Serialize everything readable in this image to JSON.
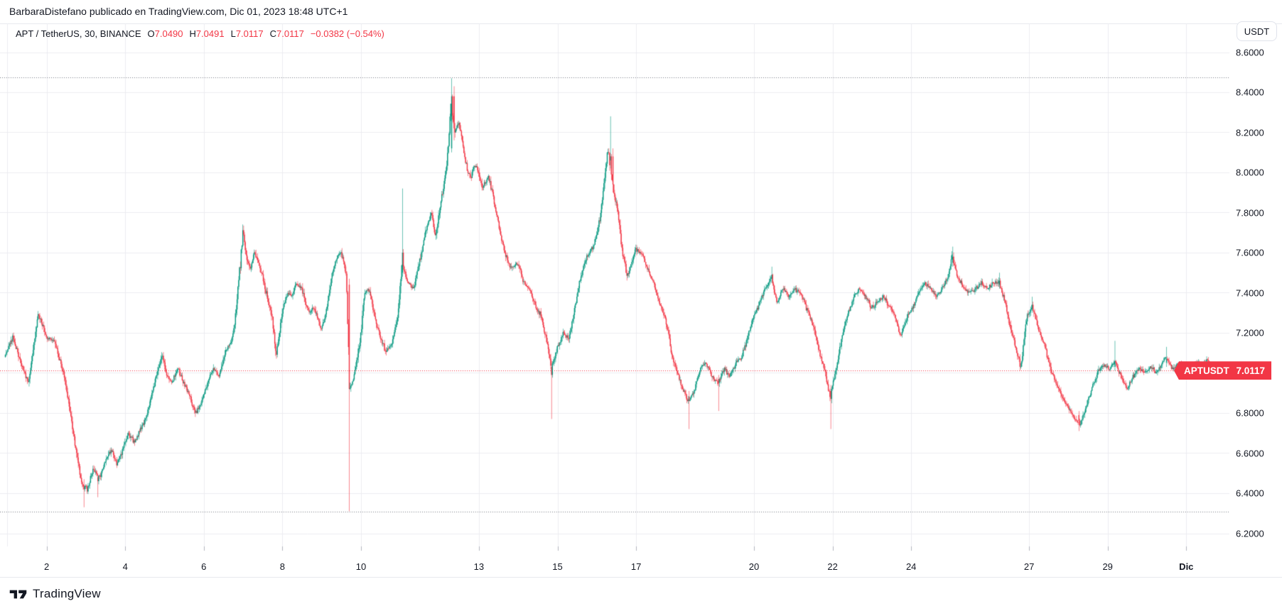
{
  "attribution": "BarbaraDistefano publicado en TradingView.com, Dic 01, 2023 18:48 UTC+1",
  "usdt_button": "USDT",
  "legend": {
    "title": "APT / TetherUS, 30, BINANCE",
    "o_label": "O",
    "o": "7.0490",
    "h_label": "H",
    "h": "7.0491",
    "l_label": "L",
    "l": "7.0117",
    "c_label": "C",
    "c": "7.0117",
    "change": "−0.0382 (−0.54%)"
  },
  "badge": {
    "symbol": "APTUSDT",
    "price": "7.0117"
  },
  "footer": {
    "logo_text": "TradingView"
  },
  "chart_data": {
    "type": "candlestick",
    "title": "APT / TetherUS, 30, BINANCE",
    "symbol": "APTUSDT",
    "pair": "APT / TetherUS",
    "interval_minutes": "30",
    "exchange": "BINANCE",
    "quote_currency": "USDT",
    "ohlc_last": {
      "open": 7.049,
      "high": 7.0491,
      "low": 7.0117,
      "close": 7.0117,
      "change_abs": -0.0382,
      "change_pct": -0.54
    },
    "levels": {
      "high_line": 8.474,
      "low_line": 6.308,
      "current_price": 7.0117
    },
    "price_axis": {
      "ticks": [
        {
          "label": "8.6000",
          "price": 8.6
        },
        {
          "label": "8.4000",
          "price": 8.4
        },
        {
          "label": "8.2000",
          "price": 8.2
        },
        {
          "label": "8.0000",
          "price": 8.0
        },
        {
          "label": "7.8000",
          "price": 7.8
        },
        {
          "label": "7.6000",
          "price": 7.6
        },
        {
          "label": "7.4000",
          "price": 7.4
        },
        {
          "label": "7.2000",
          "price": 7.2
        },
        {
          "label": "6.8000",
          "price": 6.8
        },
        {
          "label": "6.6000",
          "price": 6.6
        },
        {
          "label": "6.4000",
          "price": 6.4
        },
        {
          "label": "6.2000",
          "price": 6.2
        }
      ],
      "grid_min": 6.2,
      "grid_max": 8.6,
      "grid_step": 0.2
    },
    "time_axis": {
      "ticks": [
        {
          "label": "2",
          "day": 2
        },
        {
          "label": "4",
          "day": 4
        },
        {
          "label": "6",
          "day": 6
        },
        {
          "label": "8",
          "day": 8
        },
        {
          "label": "10",
          "day": 10
        },
        {
          "label": "13",
          "day": 13
        },
        {
          "label": "15",
          "day": 15
        },
        {
          "label": "17",
          "day": 17
        },
        {
          "label": "20",
          "day": 20
        },
        {
          "label": "22",
          "day": 22
        },
        {
          "label": "24",
          "day": 24
        },
        {
          "label": "27",
          "day": 27
        },
        {
          "label": "29",
          "day": 29
        },
        {
          "label": "Dic",
          "day": 31,
          "bold": true
        }
      ],
      "first_day_gridline": 1,
      "month": "Nov 2023 → Dic 2023"
    },
    "range": {
      "day_start": 0.94,
      "day_end": 31.78,
      "candles_per_day": 48
    },
    "colors": {
      "up": "#089981",
      "down": "#f23645",
      "grid": "#ececf1",
      "tick": "#b2b5be",
      "dotted": "#787b86",
      "current": "#f23645"
    },
    "anchors": [
      [
        0.9,
        7.06
      ],
      [
        1.15,
        7.18
      ],
      [
        1.35,
        7.05
      ],
      [
        1.55,
        6.95
      ],
      [
        1.8,
        7.3
      ],
      [
        2.0,
        7.18
      ],
      [
        2.2,
        7.16
      ],
      [
        2.45,
        7.0
      ],
      [
        2.6,
        6.82
      ],
      [
        2.75,
        6.62
      ],
      [
        2.9,
        6.45
      ],
      [
        3.05,
        6.42
      ],
      [
        3.2,
        6.52
      ],
      [
        3.35,
        6.48
      ],
      [
        3.5,
        6.55
      ],
      [
        3.65,
        6.62
      ],
      [
        3.8,
        6.55
      ],
      [
        3.95,
        6.62
      ],
      [
        4.1,
        6.7
      ],
      [
        4.25,
        6.65
      ],
      [
        4.4,
        6.72
      ],
      [
        4.55,
        6.78
      ],
      [
        4.7,
        6.9
      ],
      [
        4.85,
        7.02
      ],
      [
        4.95,
        7.1
      ],
      [
        5.05,
        7.0
      ],
      [
        5.2,
        6.95
      ],
      [
        5.35,
        7.02
      ],
      [
        5.5,
        6.95
      ],
      [
        5.65,
        6.88
      ],
      [
        5.8,
        6.8
      ],
      [
        5.95,
        6.85
      ],
      [
        6.1,
        6.95
      ],
      [
        6.25,
        7.02
      ],
      [
        6.4,
        6.98
      ],
      [
        6.55,
        7.1
      ],
      [
        6.7,
        7.15
      ],
      [
        6.8,
        7.25
      ],
      [
        6.9,
        7.45
      ],
      [
        7.0,
        7.7
      ],
      [
        7.1,
        7.58
      ],
      [
        7.2,
        7.52
      ],
      [
        7.3,
        7.6
      ],
      [
        7.4,
        7.55
      ],
      [
        7.5,
        7.48
      ],
      [
        7.6,
        7.4
      ],
      [
        7.7,
        7.32
      ],
      [
        7.75,
        7.28
      ],
      [
        7.85,
        7.08
      ],
      [
        7.95,
        7.22
      ],
      [
        8.05,
        7.35
      ],
      [
        8.15,
        7.4
      ],
      [
        8.25,
        7.38
      ],
      [
        8.35,
        7.45
      ],
      [
        8.5,
        7.42
      ],
      [
        8.6,
        7.35
      ],
      [
        8.7,
        7.3
      ],
      [
        8.8,
        7.33
      ],
      [
        8.9,
        7.28
      ],
      [
        9.0,
        7.22
      ],
      [
        9.1,
        7.28
      ],
      [
        9.2,
        7.4
      ],
      [
        9.3,
        7.52
      ],
      [
        9.4,
        7.58
      ],
      [
        9.5,
        7.6
      ],
      [
        9.57,
        7.55
      ],
      [
        9.64,
        7.48
      ],
      [
        9.72,
        6.92
      ],
      [
        9.8,
        6.95
      ],
      [
        9.9,
        7.05
      ],
      [
        10.0,
        7.18
      ],
      [
        10.1,
        7.4
      ],
      [
        10.2,
        7.42
      ],
      [
        10.35,
        7.28
      ],
      [
        10.5,
        7.18
      ],
      [
        10.65,
        7.1
      ],
      [
        10.8,
        7.15
      ],
      [
        10.95,
        7.28
      ],
      [
        11.05,
        7.55
      ],
      [
        11.2,
        7.45
      ],
      [
        11.35,
        7.42
      ],
      [
        11.5,
        7.55
      ],
      [
        11.65,
        7.7
      ],
      [
        11.8,
        7.8
      ],
      [
        11.9,
        7.68
      ],
      [
        12.0,
        7.8
      ],
      [
        12.1,
        7.92
      ],
      [
        12.2,
        8.05
      ],
      [
        12.3,
        8.35
      ],
      [
        12.4,
        8.2
      ],
      [
        12.5,
        8.25
      ],
      [
        12.6,
        8.15
      ],
      [
        12.7,
        8.02
      ],
      [
        12.8,
        7.97
      ],
      [
        12.9,
        8.04
      ],
      [
        13.0,
        8.0
      ],
      [
        13.1,
        7.92
      ],
      [
        13.25,
        7.98
      ],
      [
        13.4,
        7.85
      ],
      [
        13.55,
        7.7
      ],
      [
        13.7,
        7.58
      ],
      [
        13.85,
        7.52
      ],
      [
        14.0,
        7.55
      ],
      [
        14.15,
        7.45
      ],
      [
        14.3,
        7.42
      ],
      [
        14.45,
        7.33
      ],
      [
        14.6,
        7.28
      ],
      [
        14.75,
        7.15
      ],
      [
        14.85,
        7.02
      ],
      [
        15.0,
        7.12
      ],
      [
        15.15,
        7.2
      ],
      [
        15.3,
        7.17
      ],
      [
        15.45,
        7.32
      ],
      [
        15.6,
        7.48
      ],
      [
        15.75,
        7.58
      ],
      [
        15.9,
        7.62
      ],
      [
        16.0,
        7.68
      ],
      [
        16.1,
        7.78
      ],
      [
        16.2,
        7.95
      ],
      [
        16.3,
        8.12
      ],
      [
        16.42,
        7.92
      ],
      [
        16.55,
        7.8
      ],
      [
        16.65,
        7.62
      ],
      [
        16.78,
        7.48
      ],
      [
        16.9,
        7.55
      ],
      [
        17.0,
        7.62
      ],
      [
        17.15,
        7.6
      ],
      [
        17.3,
        7.52
      ],
      [
        17.45,
        7.45
      ],
      [
        17.6,
        7.35
      ],
      [
        17.75,
        7.28
      ],
      [
        17.9,
        7.12
      ],
      [
        18.05,
        7.0
      ],
      [
        18.2,
        6.92
      ],
      [
        18.35,
        6.85
      ],
      [
        18.5,
        6.92
      ],
      [
        18.65,
        7.02
      ],
      [
        18.8,
        7.05
      ],
      [
        18.95,
        6.98
      ],
      [
        19.1,
        6.95
      ],
      [
        19.25,
        7.02
      ],
      [
        19.4,
        6.98
      ],
      [
        19.55,
        7.05
      ],
      [
        19.7,
        7.08
      ],
      [
        19.85,
        7.18
      ],
      [
        20.0,
        7.28
      ],
      [
        20.15,
        7.35
      ],
      [
        20.3,
        7.42
      ],
      [
        20.45,
        7.48
      ],
      [
        20.6,
        7.35
      ],
      [
        20.75,
        7.42
      ],
      [
        20.9,
        7.38
      ],
      [
        21.05,
        7.42
      ],
      [
        21.2,
        7.4
      ],
      [
        21.35,
        7.32
      ],
      [
        21.5,
        7.25
      ],
      [
        21.65,
        7.12
      ],
      [
        21.8,
        7.02
      ],
      [
        21.95,
        6.88
      ],
      [
        22.1,
        7.02
      ],
      [
        22.25,
        7.18
      ],
      [
        22.4,
        7.3
      ],
      [
        22.55,
        7.38
      ],
      [
        22.7,
        7.42
      ],
      [
        22.85,
        7.38
      ],
      [
        23.0,
        7.32
      ],
      [
        23.15,
        7.35
      ],
      [
        23.3,
        7.38
      ],
      [
        23.45,
        7.33
      ],
      [
        23.6,
        7.28
      ],
      [
        23.75,
        7.18
      ],
      [
        23.9,
        7.28
      ],
      [
        24.05,
        7.33
      ],
      [
        24.2,
        7.4
      ],
      [
        24.35,
        7.45
      ],
      [
        24.5,
        7.42
      ],
      [
        24.65,
        7.38
      ],
      [
        24.8,
        7.42
      ],
      [
        24.95,
        7.48
      ],
      [
        25.05,
        7.58
      ],
      [
        25.2,
        7.48
      ],
      [
        25.35,
        7.42
      ],
      [
        25.5,
        7.4
      ],
      [
        25.65,
        7.42
      ],
      [
        25.8,
        7.45
      ],
      [
        25.95,
        7.42
      ],
      [
        26.1,
        7.45
      ],
      [
        26.25,
        7.45
      ],
      [
        26.4,
        7.35
      ],
      [
        26.55,
        7.22
      ],
      [
        26.7,
        7.1
      ],
      [
        26.8,
        7.03
      ],
      [
        26.95,
        7.28
      ],
      [
        27.1,
        7.33
      ],
      [
        27.25,
        7.22
      ],
      [
        27.4,
        7.15
      ],
      [
        27.55,
        7.02
      ],
      [
        27.7,
        6.95
      ],
      [
        27.85,
        6.88
      ],
      [
        28.0,
        6.83
      ],
      [
        28.15,
        6.78
      ],
      [
        28.3,
        6.74
      ],
      [
        28.45,
        6.82
      ],
      [
        28.6,
        6.92
      ],
      [
        28.75,
        7.0
      ],
      [
        28.9,
        7.04
      ],
      [
        29.05,
        7.02
      ],
      [
        29.2,
        7.06
      ],
      [
        29.35,
        6.98
      ],
      [
        29.5,
        6.92
      ],
      [
        29.65,
        6.98
      ],
      [
        29.8,
        7.02
      ],
      [
        29.95,
        7.0
      ],
      [
        30.1,
        7.03
      ],
      [
        30.25,
        7.0
      ],
      [
        30.4,
        7.05
      ],
      [
        30.5,
        7.08
      ],
      [
        30.65,
        7.02
      ],
      [
        30.8,
        7.04
      ],
      [
        30.95,
        7.03
      ],
      [
        31.1,
        7.02
      ],
      [
        31.25,
        7.05
      ],
      [
        31.4,
        7.04
      ],
      [
        31.55,
        7.06
      ],
      [
        31.8,
        7.01
      ]
    ],
    "special_candles": [
      [
        2.95,
        6.44,
        6.47,
        6.33,
        6.42
      ],
      [
        3.3,
        6.48,
        6.5,
        6.38,
        6.46
      ],
      [
        9.69,
        7.44,
        7.47,
        6.31,
        6.92
      ],
      [
        11.04,
        7.5,
        7.92,
        7.48,
        7.6
      ],
      [
        12.29,
        8.12,
        8.47,
        8.1,
        8.38
      ],
      [
        12.35,
        8.38,
        8.43,
        8.16,
        8.22
      ],
      [
        14.85,
        7.03,
        7.06,
        6.77,
        6.99
      ],
      [
        16.34,
        8.06,
        8.28,
        8.02,
        8.08
      ],
      [
        16.4,
        8.08,
        8.12,
        7.9,
        7.94
      ],
      [
        18.34,
        6.88,
        6.91,
        6.72,
        6.86
      ],
      [
        19.1,
        6.97,
        6.99,
        6.81,
        6.95
      ],
      [
        20.44,
        7.47,
        7.53,
        7.45,
        7.49
      ],
      [
        21.95,
        6.91,
        6.94,
        6.72,
        6.87
      ],
      [
        25.05,
        7.55,
        7.63,
        7.53,
        7.58
      ],
      [
        26.24,
        7.44,
        7.5,
        7.42,
        7.46
      ],
      [
        27.08,
        7.32,
        7.38,
        7.3,
        7.34
      ],
      [
        28.25,
        6.79,
        6.81,
        6.71,
        6.76
      ],
      [
        29.18,
        7.03,
        7.16,
        7.01,
        7.06
      ],
      [
        30.49,
        7.05,
        7.13,
        7.03,
        7.07
      ],
      [
        31.77,
        7.049,
        7.0491,
        7.0117,
        7.0117
      ]
    ]
  }
}
